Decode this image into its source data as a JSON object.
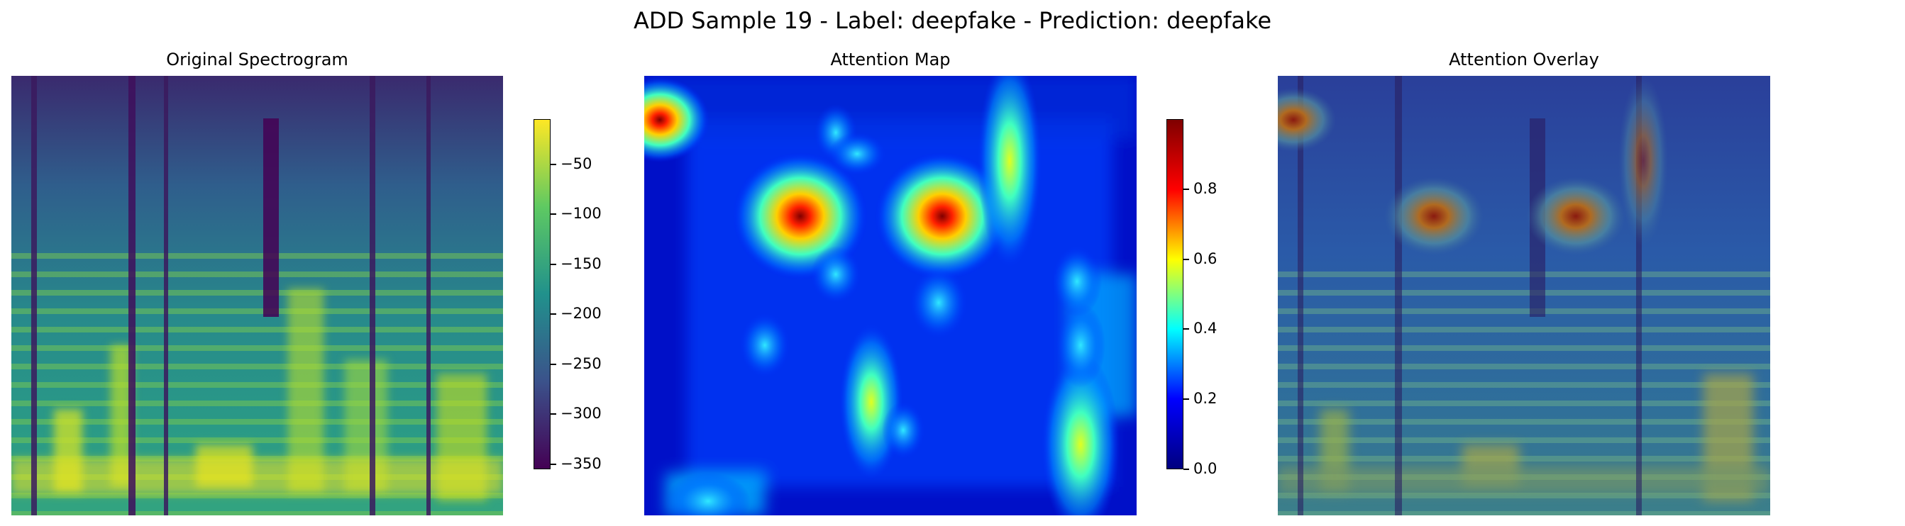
{
  "figure": {
    "suptitle": "ADD Sample 19 - Label: deepfake - Prediction: deepfake"
  },
  "chart_data": [
    {
      "type": "heatmap",
      "title": "Original Spectrogram",
      "colormap": "viridis",
      "axes": "off",
      "colorbar": {
        "range": [
          -355,
          -5
        ],
        "ticks": [
          -50,
          -100,
          -150,
          -200,
          -250,
          -300,
          -350
        ],
        "tick_labels": [
          "−50",
          "−100",
          "−150",
          "−200",
          "−250",
          "−300",
          "−350"
        ]
      }
    },
    {
      "type": "heatmap",
      "title": "Attention Map",
      "colormap": "jet",
      "axes": "off",
      "colorbar": {
        "range": [
          0,
          1
        ],
        "ticks": [
          0.8,
          0.6,
          0.4,
          0.2,
          0.0
        ],
        "tick_labels": [
          "0.8",
          "0.6",
          "0.4",
          "0.2",
          "0.0"
        ]
      },
      "hotspots": [
        {
          "x": 0.03,
          "y": 0.1,
          "value": 1.0
        },
        {
          "x": 0.32,
          "y": 0.32,
          "value": 1.0
        },
        {
          "x": 0.61,
          "y": 0.32,
          "value": 1.0
        },
        {
          "x": 0.74,
          "y": 0.18,
          "value": 0.6
        },
        {
          "x": 0.46,
          "y": 0.74,
          "value": 0.55
        },
        {
          "x": 0.88,
          "y": 0.88,
          "value": 0.55
        }
      ]
    },
    {
      "type": "heatmap",
      "title": "Attention Overlay",
      "colormap": "jet over viridis",
      "axes": "off"
    }
  ]
}
